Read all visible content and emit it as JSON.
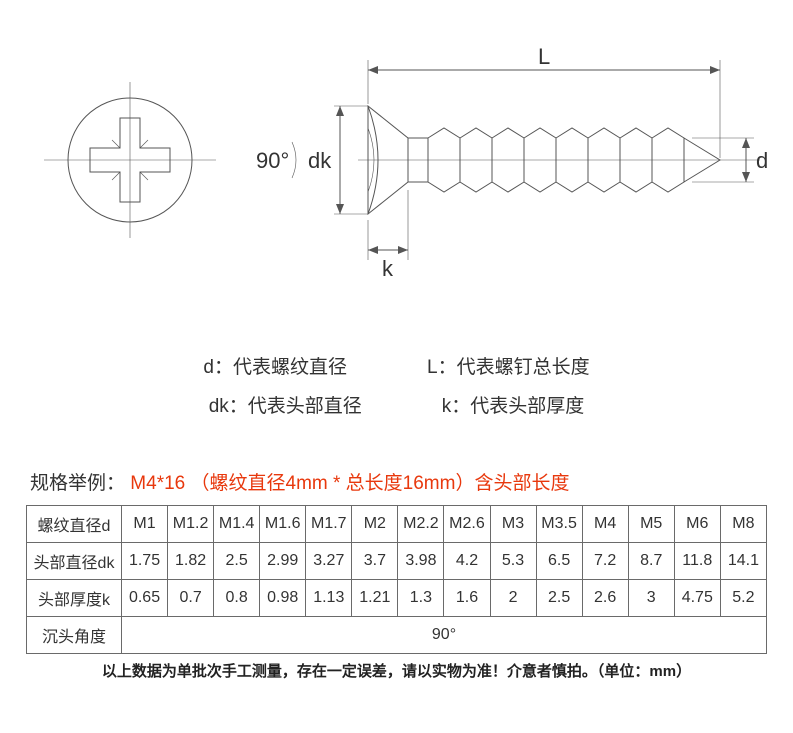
{
  "diagram": {
    "angle_label": "90°",
    "labels": {
      "dk": "dk",
      "k": "k",
      "L": "L",
      "d": "d"
    },
    "stroke_color": "#555555",
    "background": "#ffffff"
  },
  "legend": {
    "d": "d：代表螺纹直径",
    "L": "L：代表螺钉总长度",
    "dk": "dk：代表头部直径",
    "k": "k：代表头部厚度"
  },
  "example": {
    "label": "规格举例：",
    "value": "M4*16 （螺纹直径4mm * 总长度16mm）含头部长度"
  },
  "table": {
    "row_headers": [
      "螺纹直径d",
      "头部直径dk",
      "头部厚度k",
      "沉头角度"
    ],
    "columns": [
      "M1",
      "M1.2",
      "M1.4",
      "M1.6",
      "M1.7",
      "M2",
      "M2.2",
      "M2.6",
      "M3",
      "M3.5",
      "M4",
      "M5",
      "M6",
      "M8"
    ],
    "rows": [
      [
        "1.75",
        "1.82",
        "2.5",
        "2.99",
        "3.27",
        "3.7",
        "3.98",
        "4.2",
        "5.3",
        "6.5",
        "7.2",
        "8.7",
        "11.8",
        "14.1"
      ],
      [
        "0.65",
        "0.7",
        "0.8",
        "0.98",
        "1.13",
        "1.21",
        "1.3",
        "1.6",
        "2",
        "2.5",
        "2.6",
        "3",
        "4.75",
        "5.2"
      ]
    ],
    "angle_row_value": "90°"
  },
  "footnote": "以上数据为单批次手工测量，存在一定误差，请以实物为准！介意者慎拍。（单位：mm）"
}
